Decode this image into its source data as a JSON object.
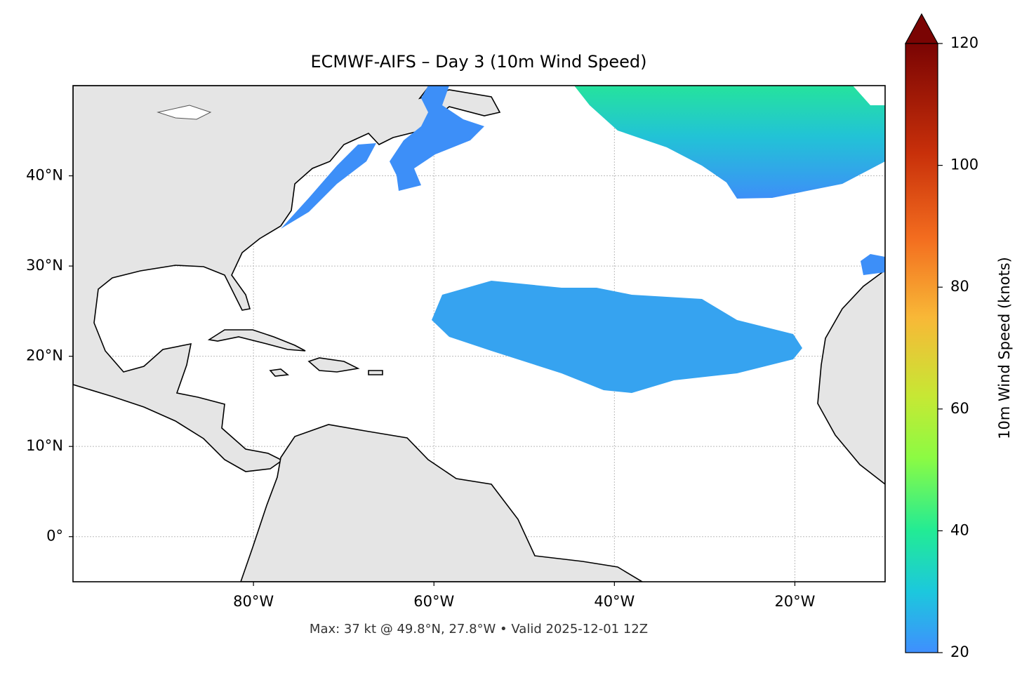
{
  "title": "ECMWF-AIFS – Day 3 (10m Wind Speed)",
  "footer": "Max: 37 kt @ 49.8°N, 27.8°W • Valid 2025-12-01 12Z",
  "map": {
    "xlim": [
      -100,
      -10
    ],
    "ylim": [
      -5,
      50
    ],
    "xticks": [
      {
        "value": -80,
        "label": "80°W"
      },
      {
        "value": -60,
        "label": "60°W"
      },
      {
        "value": -40,
        "label": "40°W"
      },
      {
        "value": -20,
        "label": "20°W"
      }
    ],
    "yticks": [
      {
        "value": 0,
        "label": "0°"
      },
      {
        "value": 10,
        "label": "10°N"
      },
      {
        "value": 20,
        "label": "20°N"
      },
      {
        "value": 30,
        "label": "30°N"
      },
      {
        "value": 40,
        "label": "40°N"
      }
    ],
    "grid": true
  },
  "colorbar": {
    "label": "10m Wind Speed (knots)",
    "lim": [
      20,
      120
    ],
    "ticks": [
      20,
      40,
      60,
      80,
      100,
      120
    ]
  }
}
